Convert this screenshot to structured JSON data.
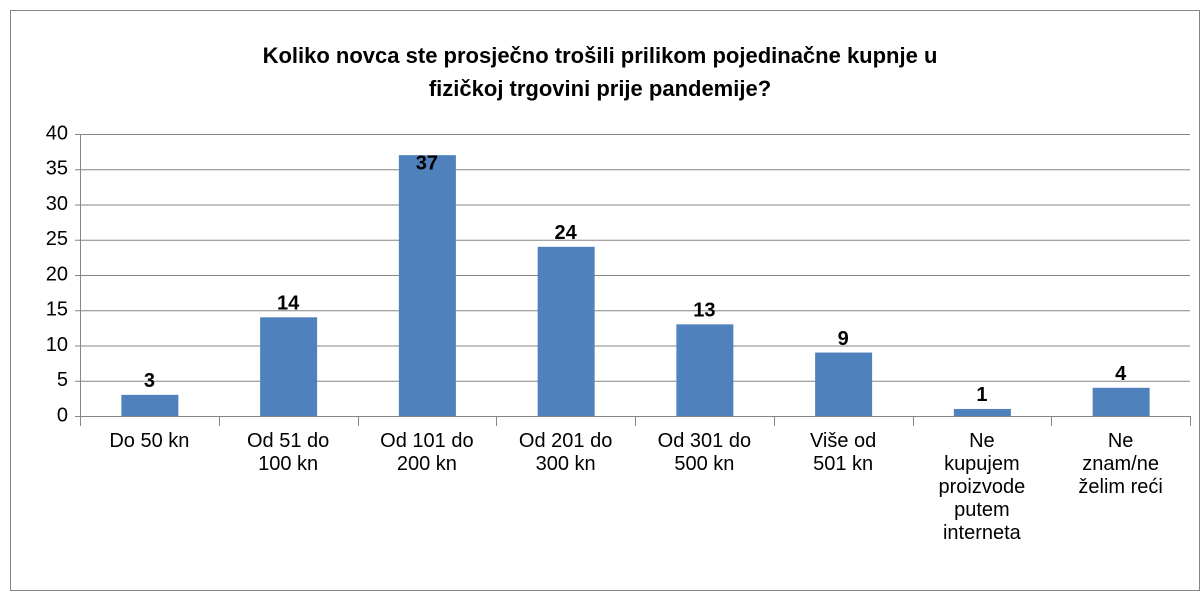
{
  "chart_data": {
    "type": "bar",
    "title": [
      "Koliko novca ste prosječno trošili prilikom pojedinačne kupnje u",
      "fizičkoj trgovini prije pandemije?"
    ],
    "categories": [
      "Do 50 kn",
      "Od 51 do 100 kn",
      "Od 101 do 200 kn",
      "Od 201 do 300 kn",
      "Od 301 do 500 kn",
      "Više od 501 kn",
      "Ne kupujem proizvode putem interneta",
      "Ne znam/ne želim reći"
    ],
    "values": [
      3,
      14,
      37,
      24,
      13,
      9,
      1,
      4
    ],
    "color": "#4f81bd",
    "ylim": [
      0,
      40
    ],
    "yticks": [
      0,
      5,
      10,
      15,
      20,
      25,
      30,
      35,
      40
    ],
    "grid": true
  }
}
